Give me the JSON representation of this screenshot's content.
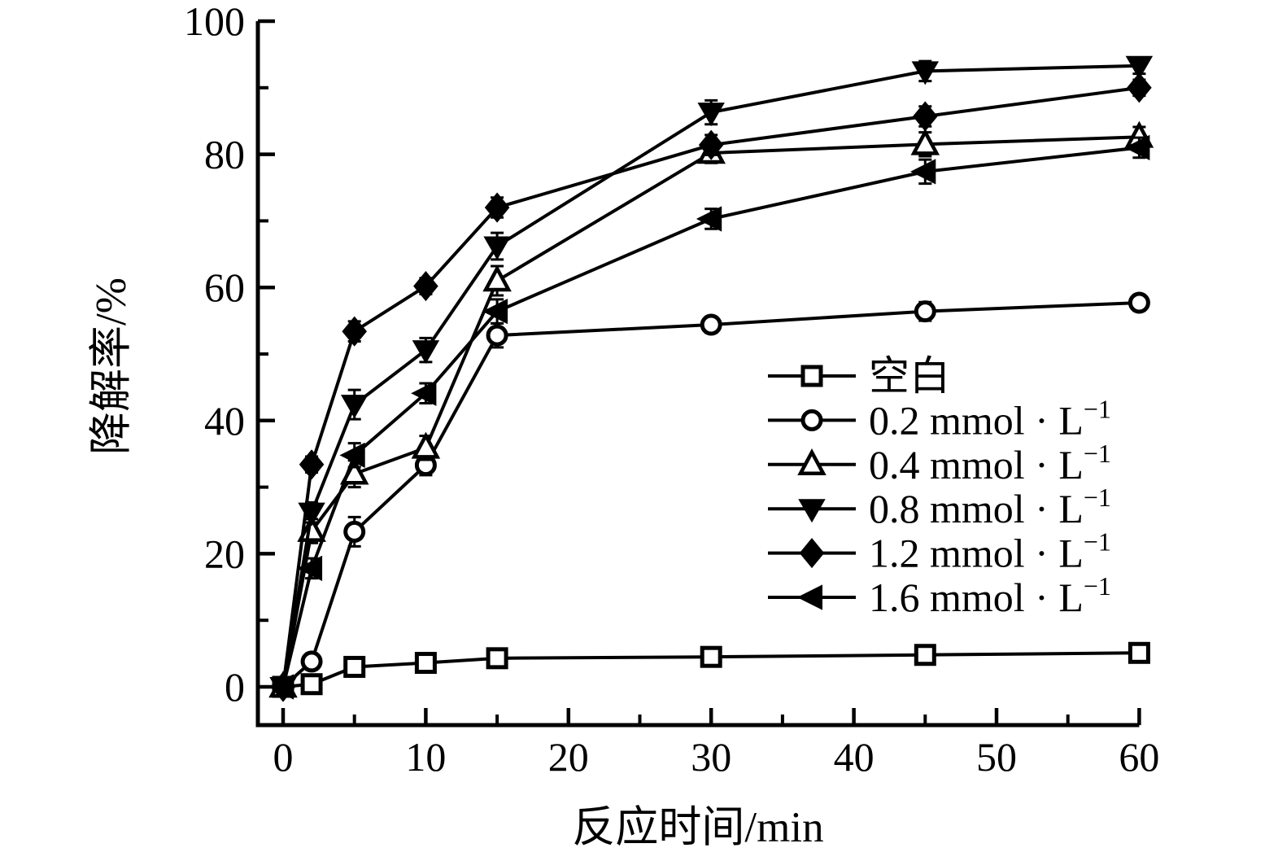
{
  "figure": {
    "x_axis_title": "反应时间/min",
    "y_axis_title": "降解率/%"
  },
  "chart_data": {
    "type": "line",
    "title": "",
    "xlabel": "反应时间/min",
    "ylabel": "降解率/%",
    "x": [
      0,
      2,
      5,
      10,
      15,
      30,
      45,
      60
    ],
    "xlim": [
      -1.8,
      60
    ],
    "ylim": [
      -5.8,
      100
    ],
    "grid": false,
    "legend_position": "center-right",
    "error_bars": true,
    "line_color": "#000000",
    "axes": {
      "x": {
        "label": "反应时间/min",
        "major_ticks": [
          0,
          10,
          20,
          30,
          40,
          50,
          60
        ],
        "tick_labels": [
          "0",
          "10",
          "20",
          "30",
          "40",
          "50",
          "60"
        ],
        "minor_ticks": [
          5,
          15,
          25,
          35,
          45,
          55
        ]
      },
      "y": {
        "label": "降解率/%",
        "major_ticks": [
          0,
          20,
          40,
          60,
          80,
          100
        ],
        "tick_labels": [
          "0",
          "20",
          "40",
          "60",
          "80",
          "100"
        ],
        "minor_ticks": [
          10,
          30,
          50,
          70,
          90
        ]
      }
    },
    "series": [
      {
        "name": "空白",
        "superscript": "",
        "marker": "open-square",
        "values": [
          0,
          0.4,
          3.0,
          3.6,
          4.3,
          4.5,
          4.8,
          5.1
        ],
        "errors": [
          0,
          0.6,
          0.8,
          0.8,
          0.8,
          0.8,
          0.8,
          0.8
        ]
      },
      {
        "name": "0.2 mmol · L",
        "superscript": "−1",
        "marker": "open-circle",
        "values": [
          0,
          3.8,
          23.3,
          33.3,
          52.8,
          54.4,
          56.4,
          57.7
        ],
        "errors": [
          0,
          1.2,
          2.2,
          1.5,
          1.8,
          1.2,
          1.4,
          1.2
        ]
      },
      {
        "name": "0.4 mmol · L",
        "superscript": "−1",
        "marker": "open-triangle-up",
        "values": [
          0,
          23.4,
          32.0,
          35.9,
          61.0,
          80.2,
          81.5,
          82.6
        ],
        "errors": [
          0,
          1.8,
          2.0,
          1.8,
          2.2,
          1.5,
          1.8,
          1.5
        ]
      },
      {
        "name": "0.8 mmol · L",
        "superscript": "−1",
        "marker": "filled-triangle-down",
        "values": [
          0,
          26.2,
          42.4,
          50.6,
          66.2,
          86.3,
          92.5,
          93.3
        ],
        "errors": [
          0,
          1.5,
          2.2,
          1.8,
          2.0,
          1.8,
          1.5,
          1.2
        ]
      },
      {
        "name": "1.2  mmol · L",
        "superscript": "−1",
        "marker": "filled-diamond",
        "values": [
          0,
          33.4,
          53.4,
          60.2,
          72.0,
          81.4,
          85.7,
          90.0
        ],
        "errors": [
          0,
          1.2,
          1.5,
          1.2,
          1.5,
          1.5,
          1.5,
          1.2
        ]
      },
      {
        "name": "1.6 mmol · L",
        "superscript": "−1",
        "marker": "filled-triangle-left",
        "values": [
          0,
          17.8,
          34.8,
          44.1,
          56.4,
          70.3,
          77.4,
          81.0
        ],
        "errors": [
          0,
          1.5,
          1.8,
          1.5,
          1.8,
          1.5,
          1.8,
          1.5
        ]
      }
    ]
  }
}
